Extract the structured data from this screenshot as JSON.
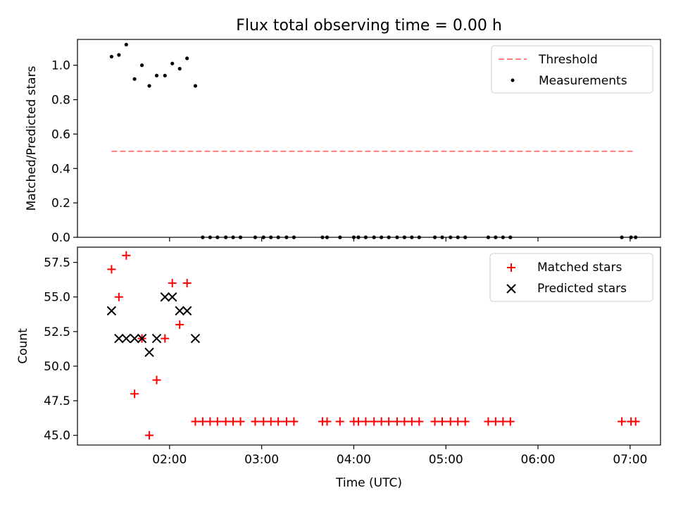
{
  "title": "Flux total observing time = 0.00 h",
  "chart_data": [
    {
      "type": "scatter",
      "ylabel": "Matched/Predicted stars",
      "ylim": [
        0,
        1.15
      ],
      "yticks": [
        0.0,
        0.2,
        0.4,
        0.6,
        0.8,
        1.0
      ],
      "ytick_labels": [
        "0.0",
        "0.2",
        "0.4",
        "0.6",
        "0.8",
        "1.0"
      ],
      "x_unit": "hours UTC",
      "xlim": [
        1.0,
        7.33
      ],
      "xticks": [
        2,
        3,
        4,
        5,
        6,
        7
      ],
      "show_xtick_labels": false,
      "legend": {
        "position": "upper right",
        "entries": [
          "Threshold",
          "Measurements"
        ]
      },
      "threshold": {
        "name": "Threshold",
        "y": 0.5,
        "x_start": 1.37,
        "x_end": 7.05,
        "color": "#ff7f7f",
        "style": "dashed"
      },
      "measurements": {
        "name": "Measurements",
        "color": "#000000",
        "x": [
          1.37,
          1.45,
          1.53,
          1.62,
          1.7,
          1.78,
          1.86,
          1.95,
          2.03,
          2.11,
          2.19,
          2.28,
          2.36,
          2.44,
          2.52,
          2.61,
          2.69,
          2.77,
          2.93,
          3.02,
          3.1,
          3.18,
          3.27,
          3.35,
          3.66,
          3.71,
          3.85,
          4.0,
          4.05,
          4.13,
          4.22,
          4.3,
          4.38,
          4.47,
          4.55,
          4.63,
          4.71,
          4.88,
          4.96,
          5.05,
          5.13,
          5.21,
          5.46,
          5.54,
          5.62,
          5.7,
          6.91,
          7.01,
          7.06
        ],
        "y": [
          1.05,
          1.06,
          1.12,
          0.92,
          1.0,
          0.88,
          0.94,
          0.94,
          1.01,
          0.98,
          1.04,
          0.88,
          0,
          0,
          0,
          0,
          0,
          0,
          0,
          0,
          0,
          0,
          0,
          0,
          0,
          0,
          0,
          0,
          0,
          0,
          0,
          0,
          0,
          0,
          0,
          0,
          0,
          0,
          0,
          0,
          0,
          0,
          0,
          0,
          0,
          0,
          0,
          0,
          0
        ]
      }
    },
    {
      "type": "scatter",
      "xlabel": "Time (UTC)",
      "ylabel": "Count",
      "ylim": [
        44.3,
        58.6
      ],
      "yticks": [
        45.0,
        47.5,
        50.0,
        52.5,
        55.0,
        57.5
      ],
      "ytick_labels": [
        "45.0",
        "47.5",
        "50.0",
        "52.5",
        "55.0",
        "57.5"
      ],
      "x_unit": "hours UTC",
      "xlim": [
        1.0,
        7.33
      ],
      "xticks": [
        2,
        3,
        4,
        5,
        6,
        7
      ],
      "xtick_labels": [
        "02:00",
        "03:00",
        "04:00",
        "05:00",
        "06:00",
        "07:00"
      ],
      "legend": {
        "position": "upper right",
        "entries": [
          "Matched stars",
          "Predicted stars"
        ]
      },
      "matched": {
        "name": "Matched stars",
        "color": "#ff0000",
        "marker": "+",
        "x": [
          1.37,
          1.45,
          1.53,
          1.62,
          1.7,
          1.78,
          1.86,
          1.95,
          2.03,
          2.11,
          2.19,
          2.28,
          2.36,
          2.44,
          2.52,
          2.61,
          2.69,
          2.77,
          2.93,
          3.02,
          3.1,
          3.18,
          3.27,
          3.35,
          3.66,
          3.71,
          3.85,
          4.0,
          4.05,
          4.13,
          4.22,
          4.3,
          4.38,
          4.47,
          4.55,
          4.63,
          4.71,
          4.88,
          4.96,
          5.05,
          5.13,
          5.21,
          5.46,
          5.54,
          5.62,
          5.7,
          6.91,
          7.01,
          7.06
        ],
        "y": [
          57,
          55,
          58,
          48,
          52,
          45,
          49,
          52,
          56,
          53,
          56,
          46,
          46,
          46,
          46,
          46,
          46,
          46,
          46,
          46,
          46,
          46,
          46,
          46,
          46,
          46,
          46,
          46,
          46,
          46,
          46,
          46,
          46,
          46,
          46,
          46,
          46,
          46,
          46,
          46,
          46,
          46,
          46,
          46,
          46,
          46,
          46,
          46,
          46
        ]
      },
      "predicted": {
        "name": "Predicted stars",
        "color": "#000000",
        "marker": "x",
        "x": [
          1.37,
          1.45,
          1.53,
          1.62,
          1.7,
          1.78,
          1.86,
          1.95,
          2.03,
          2.11,
          2.19,
          2.28
        ],
        "y": [
          54,
          52,
          52,
          52,
          52,
          51,
          52,
          55,
          55,
          54,
          54,
          52
        ]
      }
    }
  ]
}
